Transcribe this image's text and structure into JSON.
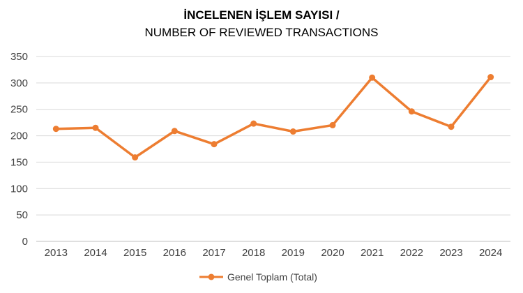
{
  "chart_data": {
    "type": "line",
    "title": "İNCELENEN İŞLEM SAYISI /",
    "subtitle": "NUMBER OF REVIEWED TRANSACTIONS",
    "xlabel": "",
    "ylabel": "",
    "categories": [
      "2013",
      "2014",
      "2015",
      "2016",
      "2017",
      "2018",
      "2019",
      "2020",
      "2021",
      "2022",
      "2023",
      "2024"
    ],
    "series": [
      {
        "name": "Genel Toplam (Total)",
        "color": "#ed7d31",
        "values": [
          213,
          215,
          159,
          209,
          184,
          223,
          208,
          220,
          310,
          246,
          217,
          311
        ]
      }
    ],
    "ylim": [
      0,
      350
    ],
    "yticks": [
      "0",
      "50",
      "100",
      "150",
      "200",
      "250",
      "300",
      "350"
    ],
    "grid": true,
    "legend_position": "bottom"
  }
}
